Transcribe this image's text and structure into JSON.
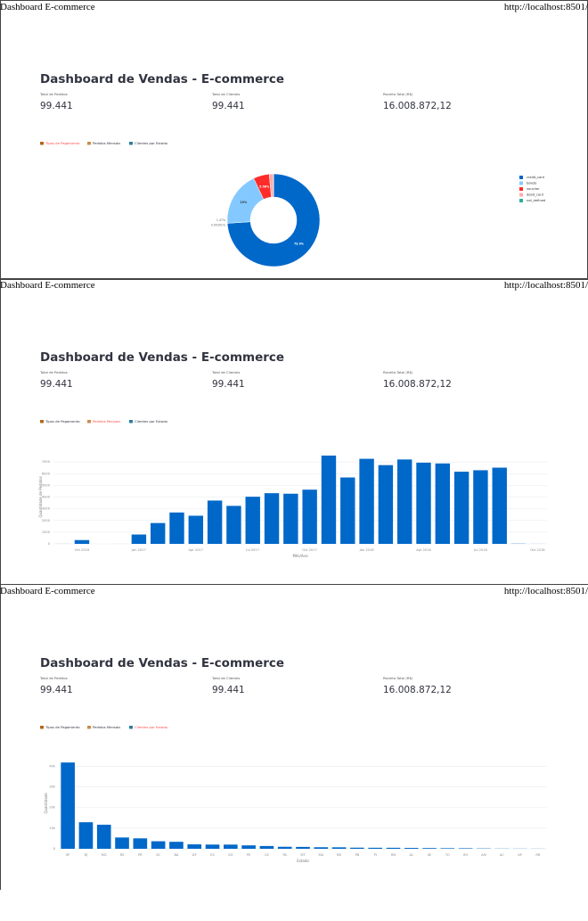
{
  "print_header": {
    "title": "Dashboard E-commerce",
    "url": "http://localhost:8501/"
  },
  "dashboard": {
    "title": "Dashboard de Vendas - E-commerce",
    "metrics": [
      {
        "label": "Total de Pedidos",
        "value": "99.441"
      },
      {
        "label": "Total de Clientes",
        "value": "99.441"
      },
      {
        "label": "Receita Total (R$)",
        "value": "16.008.872,12"
      }
    ],
    "tabs": [
      "Tipos de Pagamento",
      "Pedidos Mensais",
      "Clientes por Estado"
    ]
  },
  "chart_data": [
    {
      "type": "pie",
      "categories": [
        "credit_card",
        "boleto",
        "voucher",
        "debit_card",
        "not_defined"
      ],
      "values": [
        73.9,
        19,
        5.56,
        1.47,
        0.00301
      ],
      "value_labels": [
        "73.9%",
        "19%",
        "5.56%",
        "1.47%",
        "0.00301%"
      ],
      "colors": [
        "#0068c9",
        "#83c9ff",
        "#ff2b2b",
        "#ffabab",
        "#29b09d"
      ],
      "legend": "top-right",
      "hole": true
    },
    {
      "type": "bar",
      "x_label": "Mês/Ano",
      "y_label": "Quantidade de Pedidos",
      "color": "#0068c9",
      "grid": true,
      "categories": [
        null,
        "Oct 2016",
        null,
        null,
        "Jan 2017",
        null,
        null,
        "Apr 2017",
        null,
        null,
        "Jul 2017",
        null,
        null,
        "Oct 2017",
        null,
        null,
        "Jan 2018",
        null,
        null,
        "Apr 2018",
        null,
        null,
        "Jul 2018",
        null,
        null,
        "Oct 2018"
      ],
      "values": [
        4,
        324,
        0,
        1,
        800,
        1780,
        2682,
        2404,
        3700,
        3245,
        4026,
        4331,
        4285,
        4631,
        7544,
        5673,
        7269,
        6728,
        7211,
        6939,
        6873,
        6167,
        6292,
        6512,
        16,
        4
      ],
      "ylim": [
        0,
        8000
      ],
      "yticks": [
        0,
        1000,
        2000,
        3000,
        4000,
        5000,
        6000,
        7000
      ]
    },
    {
      "type": "bar",
      "x_label": "Estado",
      "y_label": "Quantidade",
      "color": "#0068c9",
      "grid": true,
      "categories": [
        "SP",
        "RJ",
        "MG",
        "RS",
        "PR",
        "SC",
        "BA",
        "DF",
        "ES",
        "GO",
        "PE",
        "CE",
        "PA",
        "MT",
        "MA",
        "MS",
        "PB",
        "PI",
        "RN",
        "AL",
        "SE",
        "TO",
        "RO",
        "AM",
        "AC",
        "AP",
        "RR"
      ],
      "values": [
        41746,
        12852,
        11635,
        5466,
        5045,
        3637,
        3380,
        2140,
        2033,
        2020,
        1652,
        1336,
        975,
        907,
        747,
        715,
        536,
        495,
        485,
        413,
        350,
        280,
        253,
        148,
        81,
        68,
        46
      ],
      "ylim": [
        0,
        44000
      ],
      "yticks": [
        0,
        {
          "value": 10000,
          "label": "10k"
        },
        {
          "value": 20000,
          "label": "20k"
        },
        {
          "value": 30000,
          "label": "30k"
        },
        {
          "value": 40000,
          "label": "40k"
        }
      ]
    }
  ]
}
